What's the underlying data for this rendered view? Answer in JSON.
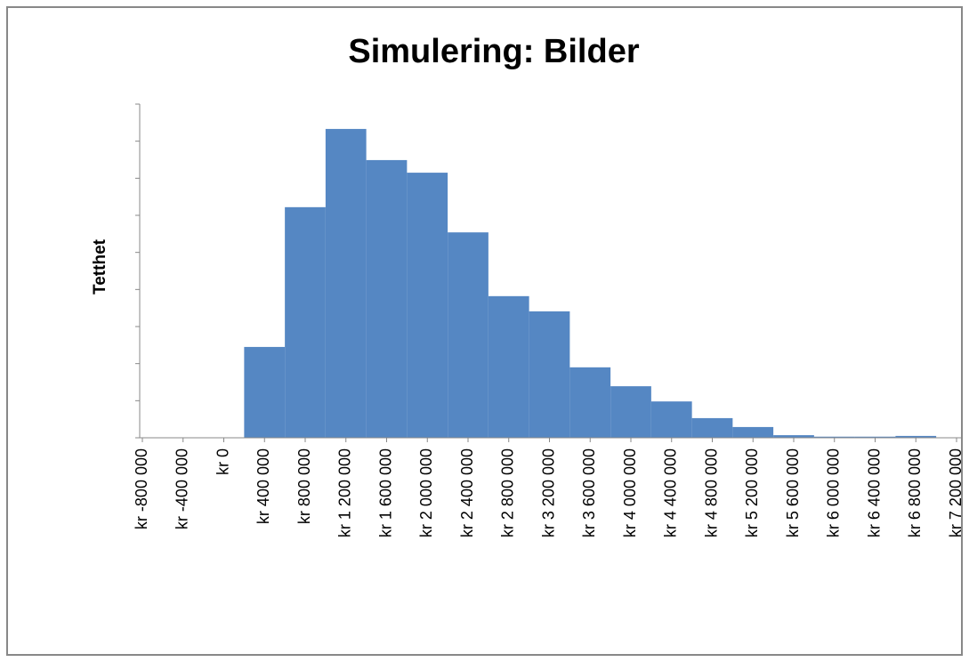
{
  "chart_data": {
    "type": "histogram",
    "title": "Simulering: Bilder",
    "y_label": "Tetthet",
    "bins": [
      200000,
      600000,
      1000000,
      1400000,
      1800000,
      2200000,
      2600000,
      3000000,
      3400000,
      3800000,
      4200000,
      4600000,
      5000000,
      5400000,
      5800000,
      6200000,
      6600000,
      7000000
    ],
    "values": [
      2.45,
      6.22,
      8.33,
      7.49,
      7.15,
      5.54,
      3.82,
      3.41,
      1.9,
      1.39,
      0.98,
      0.53,
      0.29,
      0.07,
      0.03,
      0.03,
      0.05
    ],
    "color": "#5587c3",
    "xlim": [
      -800000,
      7200000
    ],
    "xticks": [
      {
        "value": -800000,
        "label": "kr -800 000"
      },
      {
        "value": -400000,
        "label": "kr -400 000"
      },
      {
        "value": 0,
        "label": "kr 0"
      },
      {
        "value": 400000,
        "label": "kr 400 000"
      },
      {
        "value": 800000,
        "label": "kr 800 000"
      },
      {
        "value": 1200000,
        "label": "kr 1 200 000"
      },
      {
        "value": 1600000,
        "label": "kr 1 600 000"
      },
      {
        "value": 2000000,
        "label": "kr 2 000 000"
      },
      {
        "value": 2400000,
        "label": "kr 2 400 000"
      },
      {
        "value": 2800000,
        "label": "kr 2 800 000"
      },
      {
        "value": 3200000,
        "label": "kr 3 200 000"
      },
      {
        "value": 3600000,
        "label": "kr 3 600 000"
      },
      {
        "value": 4000000,
        "label": "kr 4 000 000"
      },
      {
        "value": 4400000,
        "label": "kr 4 400 000"
      },
      {
        "value": 4800000,
        "label": "kr 4 800 000"
      },
      {
        "value": 5200000,
        "label": "kr 5 200 000"
      },
      {
        "value": 5600000,
        "label": "kr 5 600 000"
      },
      {
        "value": 6000000,
        "label": "kr 6 000 000"
      },
      {
        "value": 6400000,
        "label": "kr 6 400 000"
      },
      {
        "value": 6800000,
        "label": "kr 6 800 000"
      },
      {
        "value": 7200000,
        "label": "kr 7 200 000"
      }
    ],
    "ylim": [
      0,
      9
    ],
    "yticks": [
      0,
      1,
      2,
      3,
      4,
      5,
      6,
      7,
      8,
      9
    ]
  }
}
